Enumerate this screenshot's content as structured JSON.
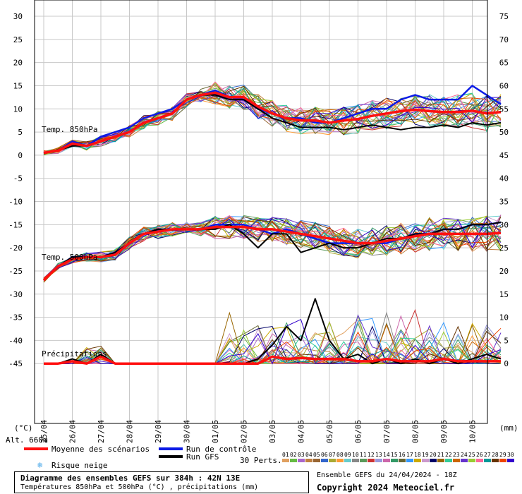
{
  "chart_data": {
    "type": "line",
    "title": "Diagramme des ensembles GEFS sur 384h : 42N 13E",
    "subtitle": "Températures 850hPa et 500hPa (°C) , précipitations (mm)",
    "left_axis": {
      "unit_label": "(°C)",
      "ticks": [
        30,
        25,
        20,
        15,
        10,
        5,
        0,
        -5,
        -10,
        -15,
        -20,
        -25,
        -30,
        -35,
        -40,
        -45
      ],
      "range": [
        -50,
        30
      ]
    },
    "right_axis": {
      "unit_label": "(mm)",
      "ticks": [
        75,
        70,
        65,
        60,
        55,
        50,
        45,
        40,
        35,
        30,
        25,
        20,
        15,
        10,
        5,
        0
      ]
    },
    "altitude_label": "Alt. 660m",
    "x_ticks": [
      "25/04",
      "26/04",
      "27/04",
      "28/04",
      "29/04",
      "30/04",
      "01/05",
      "02/05",
      "03/05",
      "04/05",
      "05/05",
      "06/05",
      "07/05",
      "08/05",
      "09/05",
      "10/05"
    ],
    "panel_labels": {
      "t850": "Temp. 850hPa",
      "t500": "Temp. 500hPa",
      "precip": "Précipitations"
    },
    "series": [
      {
        "name": "Moyenne des scénarios",
        "panel": "t850",
        "x": [
          0,
          0.5,
          1,
          1.5,
          2,
          2.5,
          3,
          3.5,
          4,
          4.5,
          5,
          5.5,
          6,
          6.5,
          7,
          7.5,
          8,
          8.5,
          9,
          9.5,
          10,
          10.5,
          11,
          11.5,
          12,
          12.5,
          13,
          13.5,
          14,
          14.5,
          15,
          15.5,
          16
        ],
        "values": [
          0.5,
          1,
          2.5,
          2,
          3,
          4,
          5,
          7,
          8,
          9,
          12,
          13,
          13.5,
          12.5,
          12.5,
          10.5,
          9,
          8,
          7.5,
          7.5,
          7,
          7.5,
          7.8,
          8.5,
          9,
          9.5,
          9.8,
          9.5,
          9.3,
          9.3,
          9.6,
          9,
          9.3
        ]
      },
      {
        "name": "Run de contrôle",
        "panel": "t850",
        "x": [
          0,
          0.5,
          1,
          1.5,
          2,
          2.5,
          3,
          3.5,
          4,
          4.5,
          5,
          5.5,
          6,
          6.5,
          7,
          7.5,
          8,
          8.5,
          9,
          9.5,
          10,
          10.5,
          11,
          11.5,
          12,
          12.5,
          13,
          13.5,
          14,
          14.5,
          15,
          15.5,
          16
        ],
        "values": [
          0.5,
          1,
          3,
          2,
          4,
          5,
          6,
          8,
          9,
          10,
          12,
          13,
          14,
          12.5,
          12,
          10,
          9,
          8,
          8,
          7,
          7,
          8,
          9,
          10,
          10,
          12,
          13,
          12,
          12,
          12,
          15,
          13,
          11
        ]
      },
      {
        "name": "Run GFS",
        "panel": "t850",
        "x": [
          0,
          0.5,
          1,
          1.5,
          2,
          2.5,
          3,
          3.5,
          4,
          4.5,
          5,
          5.5,
          6,
          6.5,
          7,
          7.5,
          8,
          8.5,
          9,
          9.5,
          10,
          10.5,
          11,
          11.5,
          12,
          12.5,
          13,
          13.5,
          14,
          14.5,
          15,
          15.5,
          16
        ],
        "values": [
          0.5,
          1,
          2,
          2,
          3,
          4,
          5,
          7,
          8,
          9,
          12,
          13,
          13,
          12,
          12,
          10,
          8,
          7,
          6,
          6,
          6,
          5.5,
          6,
          6.5,
          6,
          5.5,
          6,
          6,
          6.5,
          6,
          7,
          6.5,
          7
        ]
      },
      {
        "name": "Moyenne des scénarios",
        "panel": "t500",
        "x": [
          0,
          0.5,
          1,
          1.5,
          2,
          2.5,
          3,
          3.5,
          4,
          4.5,
          5,
          5.5,
          6,
          6.5,
          7,
          7.5,
          8,
          8.5,
          9,
          9.5,
          10,
          10.5,
          11,
          11.5,
          12,
          12.5,
          13,
          13.5,
          14,
          14.5,
          15,
          15.5,
          16
        ],
        "values": [
          -27,
          -24,
          -22.5,
          -22,
          -22,
          -21.5,
          -19,
          -17,
          -16.5,
          -16,
          -16,
          -16,
          -15.5,
          -15.5,
          -15.5,
          -16,
          -16,
          -16.5,
          -17,
          -17.5,
          -18,
          -18.5,
          -19,
          -19,
          -18.5,
          -18,
          -17.5,
          -17,
          -17,
          -17,
          -17,
          -17,
          -16.8
        ]
      },
      {
        "name": "Run de contrôle",
        "panel": "t500",
        "x": [
          0,
          0.5,
          1,
          1.5,
          2,
          2.5,
          3,
          3.5,
          4,
          4.5,
          5,
          5.5,
          6,
          6.5,
          7,
          7.5,
          8,
          8.5,
          9,
          9.5,
          10,
          10.5,
          11,
          11.5,
          12,
          12.5,
          13,
          13.5,
          14,
          14.5,
          15,
          15.5,
          16
        ],
        "values": [
          -27,
          -24,
          -22,
          -22,
          -22,
          -21,
          -19,
          -17,
          -16,
          -16,
          -16,
          -16,
          -15,
          -15,
          -15,
          -16,
          -17,
          -16,
          -17,
          -18,
          -19,
          -19,
          -19,
          -19,
          -19,
          -18,
          -17,
          -17,
          -16,
          -16,
          -15,
          -15,
          -14.5
        ]
      },
      {
        "name": "Run GFS",
        "panel": "t500",
        "x": [
          0,
          0.5,
          1,
          1.5,
          2,
          2.5,
          3,
          3.5,
          4,
          4.5,
          5,
          5.5,
          6,
          6.5,
          7,
          7.5,
          8,
          8.5,
          9,
          9.5,
          10,
          10.5,
          11,
          11.5,
          12,
          12.5,
          13,
          13.5,
          14,
          14.5,
          15,
          15.5,
          16
        ],
        "values": [
          -27,
          -24,
          -22,
          -22,
          -22,
          -21,
          -19,
          -17,
          -16,
          -16,
          -16,
          -16,
          -16,
          -15,
          -17,
          -20,
          -17,
          -17,
          -21,
          -20,
          -19,
          -20,
          -20,
          -19,
          -18,
          -18,
          -17,
          -17,
          -16,
          -16,
          -15,
          -15,
          -14.5
        ]
      },
      {
        "name": "Moyenne des scénarios",
        "panel": "precip",
        "unit": "mm",
        "x": [
          0,
          0.5,
          1,
          1.5,
          2,
          2.5,
          3,
          3.5,
          4,
          4.5,
          5,
          5.5,
          6,
          6.5,
          7,
          7.5,
          8,
          8.5,
          9,
          9.5,
          10,
          10.5,
          11,
          11.5,
          12,
          12.5,
          13,
          13.5,
          14,
          14.5,
          15,
          15.5,
          16
        ],
        "values": [
          0,
          0,
          0.5,
          0,
          1.5,
          0,
          0,
          0,
          0,
          0,
          0,
          0,
          0,
          0,
          0,
          0,
          1.5,
          1,
          1.2,
          1,
          1,
          1,
          0.5,
          0.5,
          1,
          0.5,
          0.5,
          0.5,
          1,
          0.5,
          0.5,
          0.5,
          0.5
        ]
      },
      {
        "name": "Run GFS",
        "panel": "precip",
        "unit": "mm",
        "x": [
          0,
          0.5,
          1,
          1.5,
          2,
          2.5,
          3,
          3.5,
          4,
          4.5,
          5,
          5.5,
          6,
          6.5,
          7,
          7.5,
          8,
          8.5,
          9,
          9.5,
          10,
          10.5,
          11,
          11.5,
          12,
          12.5,
          13,
          13.5,
          14,
          14.5,
          15,
          15.5,
          16
        ],
        "values": [
          0,
          0,
          1,
          0,
          2,
          0,
          0,
          0,
          0,
          0,
          0,
          0,
          0,
          0,
          0,
          1,
          4,
          8,
          5,
          14,
          5,
          1,
          2,
          0,
          1,
          0,
          1,
          0,
          1,
          0,
          1,
          2,
          1
        ]
      }
    ],
    "perturbation_colors": [
      "#e0a060",
      "#66bb44",
      "#aa66cc",
      "#c08040",
      "#996633",
      "#3366cc",
      "#aaaa33",
      "#ff9933",
      "#66cccc",
      "#888888",
      "#5a9a5a",
      "#cc3333",
      "#9999dd",
      "#cc66aa",
      "#339966",
      "#666633",
      "#3399ff",
      "#ccaa00",
      "#cc99cc",
      "#000066",
      "#996600",
      "#33cc99",
      "#cc6600",
      "#6633cc",
      "#99cc33",
      "#ff6699",
      "#009999",
      "#663300",
      "#ee4400",
      "#3300cc"
    ],
    "legend": {
      "mean": "Moyenne des scénarios",
      "mean_color": "#ff1010",
      "control": "Run de contrôle",
      "control_color": "#0b1be6",
      "gfs": "Run GFS",
      "gfs_color": "#000000",
      "snow": "Risque neige",
      "perts_label": "30 Perts.",
      "pert_numbers": [
        "01",
        "02",
        "03",
        "04",
        "05",
        "06",
        "07",
        "08",
        "09",
        "10",
        "11",
        "12",
        "13",
        "14",
        "15",
        "16",
        "17",
        "18",
        "19",
        "20",
        "21",
        "22",
        "23",
        "24",
        "25",
        "26",
        "27",
        "28",
        "29",
        "30"
      ]
    }
  },
  "footer": {
    "title": "Diagramme des ensembles GEFS sur 384h : 42N 13E",
    "subtitle": "Températures 850hPa et 500hPa (°C) , précipitations (mm)",
    "run_info": "Ensemble GEFS du 24/04/2024 - 18Z",
    "copyright": "Copyright 2024 Meteociel.fr"
  }
}
